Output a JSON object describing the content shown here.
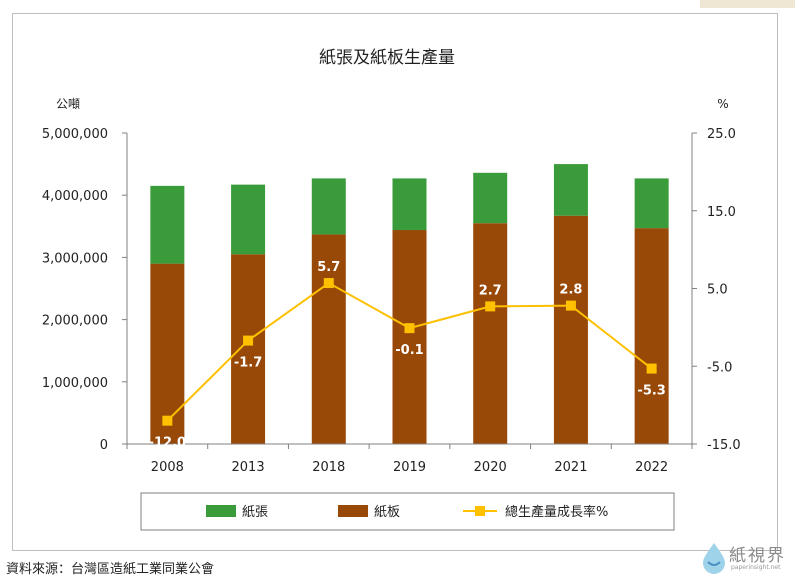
{
  "chart_data": {
    "type": "bar",
    "title": "紙張及紙板生產量",
    "y_left_unit": "公噸",
    "y_right_unit": "%",
    "categories": [
      "2008",
      "2013",
      "2018",
      "2019",
      "2020",
      "2021",
      "2022"
    ],
    "ylim_left": [
      0,
      5000000
    ],
    "ylim_right": [
      -15,
      25
    ],
    "left_ticks": [
      "5,000,000",
      "4,000,000",
      "3,000,000",
      "2,000,000",
      "1,000,000",
      "0"
    ],
    "left_tick_values": [
      5000000,
      4000000,
      3000000,
      2000000,
      1000000,
      0
    ],
    "right_ticks": [
      "25.0",
      "15.0",
      "5.0",
      "-5.0",
      "-15.0"
    ],
    "right_tick_values": [
      25,
      15,
      5,
      -5,
      -15
    ],
    "series": [
      {
        "name": "紙板",
        "values": [
          2900000,
          3050000,
          3370000,
          3440000,
          3550000,
          3670000,
          3470000
        ],
        "color": "#984807",
        "stack": true
      },
      {
        "name": "紙張",
        "values": [
          1250000,
          1120000,
          900000,
          830000,
          810000,
          830000,
          800000
        ],
        "color": "#3a9b3a",
        "stack": true
      },
      {
        "name": "總生產量成長率%",
        "values": [
          -12.0,
          -1.7,
          5.7,
          -0.1,
          2.7,
          2.8,
          -5.3
        ],
        "labels": [
          "-12.0",
          "-1.7",
          "5.7",
          "-0.1",
          "2.7",
          "2.8",
          "-5.3"
        ],
        "color": "#ffc000",
        "axis": "right",
        "kind": "line"
      }
    ],
    "legend_position": "bottom",
    "grid": false
  },
  "source": "資料來源：台灣區造紙工業同業公會",
  "watermark": {
    "text": "紙視界",
    "url": "paperinsight.net"
  }
}
